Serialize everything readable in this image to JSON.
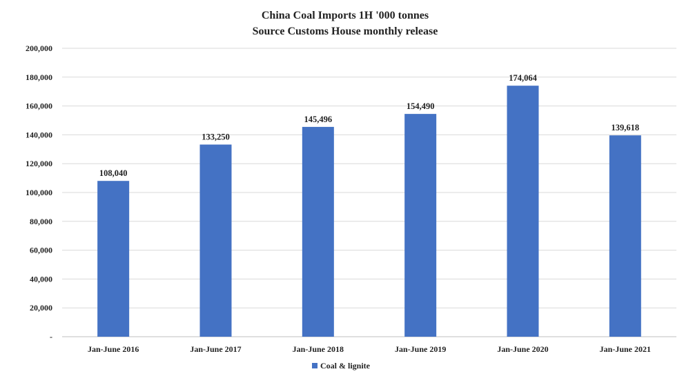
{
  "chart_data": {
    "type": "bar",
    "title": "China Coal Imports 1H '000 tonnes",
    "subtitle": "Source Customs House monthly release",
    "categories": [
      "Jan-June 2016",
      "Jan-June 2017",
      "Jan-June 2018",
      "Jan-June 2019",
      "Jan-June 2020",
      "Jan-June 2021"
    ],
    "series": [
      {
        "name": "Coal & lignite",
        "values": [
          108040,
          133250,
          145496,
          154490,
          174064,
          139618
        ],
        "labels": [
          "108,040",
          "133,250",
          "145,496",
          "154,490",
          "174,064",
          "139,618"
        ],
        "color": "#4472C4"
      }
    ],
    "ylim": [
      0,
      200000
    ],
    "ytick_labels": [
      "-",
      "20,000",
      "40,000",
      "60,000",
      "80,000",
      "100,000",
      "120,000",
      "140,000",
      "160,000",
      "180,000",
      "200,000"
    ],
    "grid": true,
    "legend_position": "bottom"
  }
}
